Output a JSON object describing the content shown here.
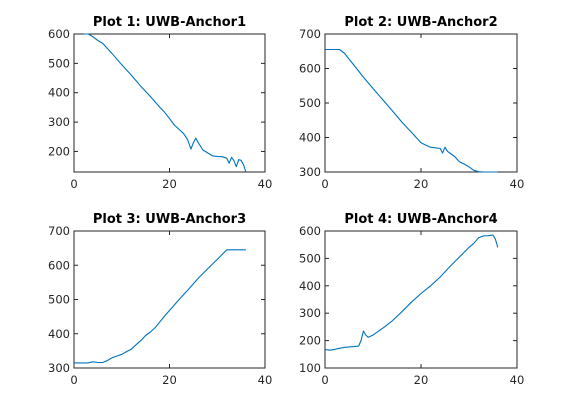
{
  "colors": {
    "series": "#0072BD",
    "axes": "#262626"
  },
  "chart_data": [
    {
      "type": "line",
      "title": "Plot 1: UWB-Anchor1",
      "xlim": [
        0,
        40
      ],
      "ylim": [
        130,
        600
      ],
      "xticks": [
        0,
        20,
        40
      ],
      "yticks": [
        200,
        300,
        400,
        500,
        600
      ],
      "grid": false,
      "series": [
        {
          "x": [
            2,
            3,
            4,
            5,
            6,
            8,
            10,
            12,
            14,
            16,
            18,
            19,
            20,
            21,
            22,
            23,
            23.8,
            24.5,
            25,
            25.5,
            26,
            27,
            28,
            29,
            30,
            31,
            32,
            32.5,
            33,
            33.5,
            34,
            34.5,
            35,
            35.5,
            36
          ],
          "y": [
            600,
            600,
            590,
            578,
            568,
            533,
            495,
            460,
            422,
            387,
            350,
            333,
            312,
            290,
            275,
            260,
            240,
            208,
            230,
            245,
            230,
            205,
            195,
            185,
            183,
            182,
            177,
            160,
            180,
            168,
            148,
            172,
            170,
            155,
            130
          ]
        }
      ]
    },
    {
      "type": "line",
      "title": "Plot 2: UWB-Anchor2",
      "xlim": [
        0,
        40
      ],
      "ylim": [
        300,
        700
      ],
      "xticks": [
        0,
        20,
        40
      ],
      "yticks": [
        300,
        400,
        500,
        600,
        700
      ],
      "grid": false,
      "series": [
        {
          "x": [
            0,
            2,
            3,
            4,
            6,
            8,
            10,
            12,
            14,
            16,
            18,
            20,
            21,
            22,
            23,
            24,
            24.5,
            25,
            25.5,
            26,
            27,
            28,
            29,
            30,
            30.5,
            31,
            32,
            33,
            34,
            35,
            36
          ],
          "y": [
            655,
            655,
            655,
            645,
            610,
            575,
            542,
            510,
            478,
            445,
            415,
            385,
            378,
            372,
            370,
            368,
            355,
            372,
            360,
            355,
            345,
            330,
            323,
            315,
            310,
            305,
            301,
            300,
            300,
            300,
            300
          ]
        }
      ]
    },
    {
      "type": "line",
      "title": "Plot 3: UWB-Anchor3",
      "xlim": [
        0,
        40
      ],
      "ylim": [
        300,
        700
      ],
      "xticks": [
        0,
        20,
        40
      ],
      "yticks": [
        300,
        400,
        500,
        600,
        700
      ],
      "grid": false,
      "series": [
        {
          "x": [
            0,
            2,
            3,
            4,
            5,
            6,
            7,
            8,
            9,
            10,
            11,
            12,
            13,
            14,
            15,
            16,
            17,
            18,
            19,
            20,
            22,
            24,
            26,
            28,
            30,
            32,
            33,
            34,
            35,
            36
          ],
          "y": [
            315,
            315,
            315,
            318,
            316,
            316,
            322,
            330,
            335,
            340,
            348,
            355,
            368,
            380,
            395,
            405,
            418,
            435,
            452,
            468,
            500,
            530,
            562,
            590,
            617,
            645,
            645,
            645,
            645,
            645
          ]
        }
      ]
    },
    {
      "type": "line",
      "title": "Plot 4: UWB-Anchor4",
      "xlim": [
        0,
        40
      ],
      "ylim": [
        100,
        600
      ],
      "xticks": [
        0,
        20,
        40
      ],
      "yticks": [
        100,
        200,
        300,
        400,
        500,
        600
      ],
      "grid": false,
      "series": [
        {
          "x": [
            0,
            1,
            2,
            3,
            4,
            5,
            6,
            7,
            7.5,
            8,
            8.5,
            9,
            10,
            12,
            14,
            16,
            18,
            20,
            22,
            24,
            26,
            28,
            30,
            31,
            32,
            33,
            34,
            35,
            35.5,
            36
          ],
          "y": [
            168,
            165,
            168,
            172,
            175,
            177,
            178,
            180,
            200,
            235,
            220,
            212,
            220,
            245,
            272,
            305,
            340,
            372,
            400,
            432,
            470,
            505,
            540,
            555,
            575,
            582,
            583,
            585,
            570,
            540
          ]
        }
      ]
    }
  ]
}
